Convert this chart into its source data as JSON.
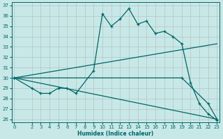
{
  "xlabel": "Humidex (Indice chaleur)",
  "bg_color": "#c8e8e8",
  "grid_color": "#d0d0d0",
  "line_color": "#006666",
  "xlim": [
    0,
    23
  ],
  "ylim": [
    26,
    37
  ],
  "xticks": [
    0,
    2,
    3,
    4,
    5,
    6,
    7,
    8,
    9,
    10,
    11,
    12,
    13,
    14,
    15,
    16,
    17,
    18,
    19,
    20,
    21,
    22,
    23
  ],
  "yticks": [
    26,
    27,
    28,
    29,
    30,
    31,
    32,
    33,
    34,
    35,
    36,
    37
  ],
  "line1_x": [
    0,
    2,
    3,
    4,
    5,
    6,
    7,
    9,
    10,
    11,
    12,
    13,
    14,
    15,
    16,
    17,
    18,
    19,
    20,
    21,
    22,
    23
  ],
  "line1_y": [
    30,
    29,
    28.5,
    28.5,
    29,
    29,
    28.5,
    30.7,
    36.2,
    35.0,
    35.7,
    36.7,
    35.2,
    35.5,
    34.3,
    34.5,
    34.0,
    33.3,
    29.5,
    27.5,
    26.5,
    25.9
  ],
  "line2_x": [
    0,
    19,
    22,
    23
  ],
  "line2_y": [
    30,
    30,
    27.5,
    26.0
  ],
  "line3_x": [
    0,
    23
  ],
  "line3_y": [
    30,
    26.0
  ],
  "line4_x": [
    0,
    23
  ],
  "line4_y": [
    30,
    33.3
  ]
}
